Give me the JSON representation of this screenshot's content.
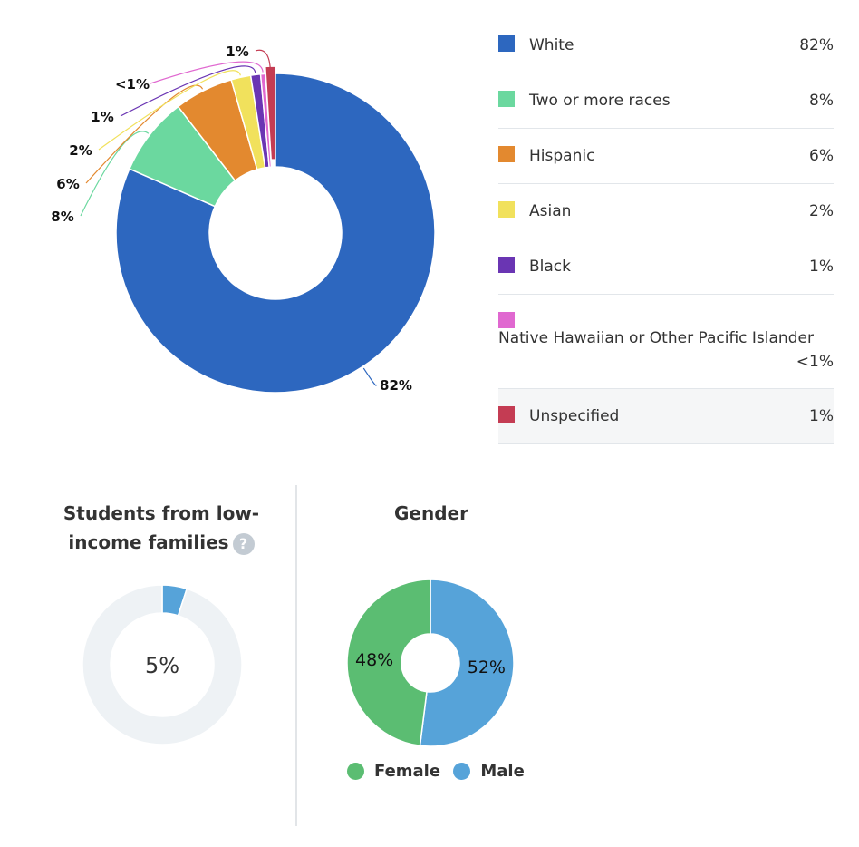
{
  "chart_data": [
    {
      "type": "pie",
      "donut": true,
      "title": "",
      "categories": [
        "White",
        "Two or more races",
        "Hispanic",
        "Asian",
        "Black",
        "Native Hawaiian or Other Pacific Islander",
        "Unspecified"
      ],
      "values": [
        82,
        8,
        6,
        2,
        1,
        0.5,
        1
      ],
      "slice_labels": [
        "82%",
        "8%",
        "6%",
        "2%",
        "1%",
        "<1%",
        "1%"
      ],
      "legend_values": [
        "82%",
        "8%",
        "6%",
        "2%",
        "1%",
        "<1%",
        "1%"
      ],
      "colors": [
        "#2d67bf",
        "#6bd89f",
        "#e3892f",
        "#f1e15c",
        "#6a35b3",
        "#e068d0",
        "#c43c53"
      ],
      "legend_position": "right"
    },
    {
      "type": "pie",
      "donut": true,
      "title": "Students from low-income families",
      "values": [
        5,
        95
      ],
      "center_label": "5%",
      "colors": [
        "#56a3d9",
        "#eef2f5"
      ]
    },
    {
      "type": "pie",
      "donut": true,
      "title": "Gender",
      "categories": [
        "Female",
        "Male"
      ],
      "values": [
        48,
        52
      ],
      "slice_labels": [
        "48%",
        "52%"
      ],
      "colors": [
        "#5bbd72",
        "#56a3d9"
      ],
      "legend_position": "bottom"
    }
  ],
  "lowincome": {
    "title_line1": "Students from low-",
    "title_line2": "income families",
    "help_icon": "?"
  },
  "gender": {
    "title": "Gender"
  }
}
